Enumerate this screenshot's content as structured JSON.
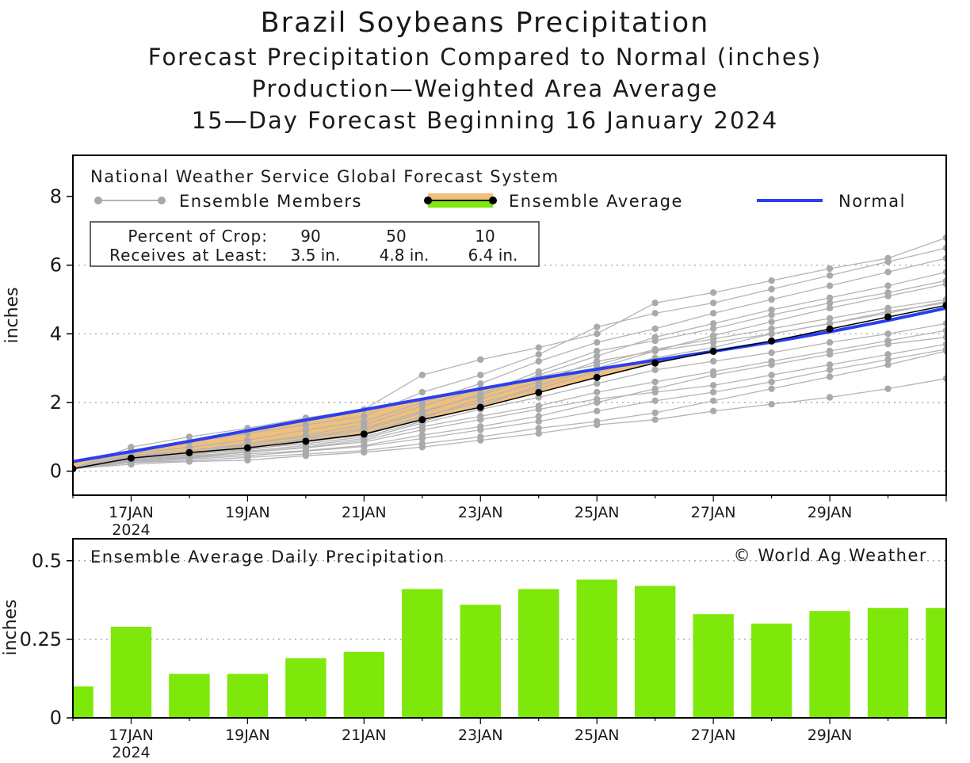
{
  "titles": {
    "main": "Brazil Soybeans Precipitation",
    "sub1": "Forecast Precipitation Compared to Normal (inches)",
    "sub2": "Production—Weighted Area Average",
    "sub3": "15—Day Forecast Beginning 16 January 2024"
  },
  "legend": {
    "model": "National Weather Service Global Forecast System",
    "members": "Ensemble Members",
    "average": "Ensemble Average",
    "normal": "Normal"
  },
  "crop_table": {
    "row1_label": "Percent of Crop:",
    "row1_values": [
      "90",
      "50",
      "10"
    ],
    "row2_label": "Receives at Least:",
    "row2_values": [
      "3.5 in.",
      "4.8 in.",
      "6.4 in."
    ]
  },
  "bottom_panel": {
    "title": "Ensemble Average Daily Precipitation",
    "copyright": "© World Ag Weather"
  },
  "colors": {
    "normal": "#2a3ff0",
    "average": "#000000",
    "member": "#b4b4b4",
    "fill_below": "#f0bf7c",
    "bar": "#7ee80a"
  },
  "chart_data": [
    {
      "type": "line",
      "title": "Forecast Precipitation Compared to Normal (inches)",
      "ylabel": "inches",
      "xlabel": "",
      "ylim": [
        -0.7,
        9.2
      ],
      "yticks": [
        0,
        2,
        4,
        6,
        8
      ],
      "grid": "dotted at 2, 4, 6",
      "x": [
        0,
        1,
        2,
        3,
        4,
        5,
        6,
        7,
        8,
        9,
        10,
        11,
        12,
        13,
        14,
        15
      ],
      "xticks": [
        {
          "x": 1,
          "label": "17JAN",
          "sub": "2024"
        },
        {
          "x": 3,
          "label": "19JAN",
          "sub": ""
        },
        {
          "x": 5,
          "label": "21JAN",
          "sub": ""
        },
        {
          "x": 7,
          "label": "23JAN",
          "sub": ""
        },
        {
          "x": 9,
          "label": "25JAN",
          "sub": ""
        },
        {
          "x": 11,
          "label": "27JAN",
          "sub": ""
        },
        {
          "x": 13,
          "label": "29JAN",
          "sub": ""
        }
      ],
      "series": [
        {
          "name": "Ensemble Average",
          "values": [
            0.07,
            0.38,
            0.54,
            0.68,
            0.87,
            1.08,
            1.5,
            1.86,
            2.29,
            2.73,
            3.15,
            3.49,
            3.79,
            4.14,
            4.49,
            4.83
          ]
        },
        {
          "name": "Normal",
          "values": [
            0.28,
            0.57,
            0.87,
            1.18,
            1.49,
            1.79,
            2.1,
            2.4,
            2.7,
            2.97,
            3.23,
            3.49,
            3.76,
            4.06,
            4.39,
            4.75
          ]
        }
      ],
      "ensemble_members": [
        [
          0.07,
          0.3,
          0.5,
          0.8,
          1.05,
          1.35,
          1.9,
          2.4,
          2.75,
          3.1,
          3.55,
          3.85,
          4.15,
          4.45,
          4.75,
          5.0
        ],
        [
          0.07,
          0.4,
          0.6,
          0.75,
          0.9,
          1.1,
          1.6,
          2.0,
          2.4,
          2.9,
          3.3,
          3.6,
          4.0,
          4.3,
          4.65,
          4.9
        ],
        [
          0.07,
          0.33,
          0.45,
          0.55,
          0.7,
          0.9,
          1.3,
          1.6,
          1.9,
          2.3,
          2.6,
          2.9,
          3.2,
          3.5,
          3.8,
          4.1
        ],
        [
          0.07,
          0.7,
          1.0,
          1.25,
          1.55,
          1.8,
          2.8,
          3.25,
          3.6,
          4.0,
          4.9,
          5.2,
          5.55,
          5.9,
          6.2,
          6.8
        ],
        [
          0.07,
          0.6,
          0.85,
          1.1,
          1.35,
          1.6,
          2.3,
          2.8,
          3.4,
          4.2,
          4.6,
          4.9,
          5.3,
          5.7,
          6.1,
          6.5
        ],
        [
          0.07,
          0.5,
          0.7,
          0.9,
          1.2,
          1.45,
          2.0,
          2.55,
          3.2,
          3.75,
          4.15,
          4.6,
          5.0,
          5.4,
          5.8,
          6.2
        ],
        [
          0.07,
          0.45,
          0.6,
          0.8,
          1.0,
          1.25,
          1.75,
          2.2,
          2.8,
          3.35,
          3.9,
          4.3,
          4.7,
          5.05,
          5.4,
          5.8
        ],
        [
          0.07,
          0.35,
          0.5,
          0.65,
          0.8,
          1.0,
          1.45,
          1.9,
          2.5,
          3.0,
          3.5,
          3.95,
          4.35,
          4.75,
          5.1,
          5.45
        ],
        [
          0.07,
          0.28,
          0.38,
          0.5,
          0.6,
          0.75,
          1.05,
          1.3,
          1.6,
          2.0,
          2.4,
          2.8,
          3.1,
          3.4,
          3.7,
          3.9
        ],
        [
          0.07,
          0.25,
          0.3,
          0.4,
          0.5,
          0.6,
          0.8,
          1.0,
          1.25,
          1.45,
          1.7,
          2.05,
          2.4,
          2.75,
          3.1,
          3.5
        ],
        [
          0.07,
          0.2,
          0.28,
          0.32,
          0.45,
          0.55,
          0.7,
          0.9,
          1.1,
          1.35,
          1.5,
          1.75,
          1.95,
          2.15,
          2.4,
          2.7
        ],
        [
          0.07,
          0.42,
          0.52,
          0.7,
          0.95,
          1.2,
          1.7,
          2.25,
          2.9,
          3.5,
          3.8,
          4.15,
          4.55,
          4.9,
          5.2,
          5.55
        ],
        [
          0.07,
          0.36,
          0.48,
          0.62,
          0.85,
          1.05,
          1.55,
          2.1,
          2.6,
          3.2,
          3.5,
          3.75,
          4.0,
          4.3,
          4.6,
          4.95
        ],
        [
          0.07,
          0.32,
          0.42,
          0.58,
          0.75,
          0.95,
          1.4,
          1.8,
          2.15,
          2.55,
          2.95,
          3.2,
          3.45,
          3.75,
          4.0,
          4.3
        ],
        [
          0.07,
          0.3,
          0.4,
          0.55,
          0.68,
          0.85,
          1.2,
          1.5,
          1.8,
          2.1,
          2.3,
          2.5,
          2.8,
          3.1,
          3.4,
          3.7
        ],
        [
          0.07,
          0.26,
          0.35,
          0.45,
          0.58,
          0.72,
          0.95,
          1.2,
          1.45,
          1.75,
          2.05,
          2.3,
          2.6,
          2.95,
          3.25,
          3.55
        ]
      ]
    },
    {
      "type": "bar",
      "title": "Ensemble Average Daily Precipitation",
      "ylabel": "inches",
      "ylim": [
        0,
        0.57
      ],
      "yticks": [
        0,
        0.25,
        0.5
      ],
      "grid": "dotted at 0.25, 0.5",
      "x": [
        0,
        1,
        2,
        3,
        4,
        5,
        6,
        7,
        8,
        9,
        10,
        11,
        12,
        13,
        14,
        15
      ],
      "values": [
        0.1,
        0.29,
        0.14,
        0.14,
        0.19,
        0.21,
        0.41,
        0.36,
        0.41,
        0.44,
        0.42,
        0.33,
        0.3,
        0.34,
        0.35,
        0.35
      ]
    }
  ]
}
